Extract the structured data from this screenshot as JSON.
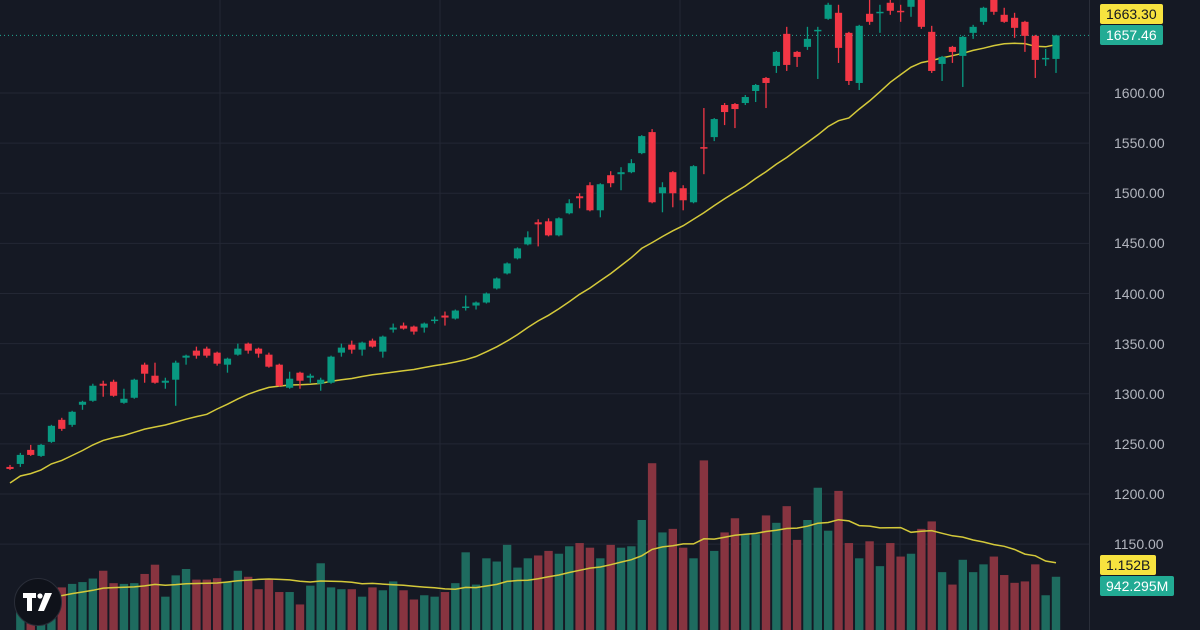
{
  "chart_data": {
    "type": "candlestick",
    "title": "",
    "price_axis": {
      "ticks": [
        1600,
        1550,
        1500,
        1450,
        1400,
        1350,
        1300,
        1250,
        1200,
        1150
      ],
      "tick_labels": [
        "1600.00",
        "1550.00",
        "1500.00",
        "1450.00",
        "1400.00",
        "1350.00",
        "1300.00",
        "1250.00",
        "1200.00",
        "1150.00"
      ]
    },
    "ma_label": "1663.30",
    "ma_value": 1663.3,
    "last_price_label": "1657.46",
    "last_price": 1657.46,
    "volume_ma_label": "1.152B",
    "volume_ma_value_m": 1152,
    "last_volume_label": "942.295M",
    "last_volume_m": 942.295,
    "ma_period": 20,
    "grid": true,
    "colors": {
      "up": "#089981",
      "down": "#f23645",
      "vol_up": "#1e6b5f",
      "vol_down": "#873440",
      "ma": "#d4c93a",
      "bg": "#151924",
      "grid": "#232734"
    },
    "candles_ohlc": [
      [
        1227,
        1229,
        1224,
        1225
      ],
      [
        1230,
        1241,
        1227,
        1239
      ],
      [
        1244,
        1249,
        1238,
        1239
      ],
      [
        1238,
        1250,
        1237,
        1249
      ],
      [
        1252,
        1269,
        1251,
        1268
      ],
      [
        1274,
        1276,
        1263,
        1265
      ],
      [
        1269,
        1283,
        1267,
        1282
      ],
      [
        1289,
        1293,
        1284,
        1292
      ],
      [
        1293,
        1310,
        1292,
        1308
      ],
      [
        1310,
        1313,
        1297,
        1308
      ],
      [
        1312,
        1314,
        1297,
        1298
      ],
      [
        1291,
        1305,
        1290,
        1295
      ],
      [
        1296,
        1315,
        1295,
        1314
      ],
      [
        1329,
        1331,
        1311,
        1320
      ],
      [
        1318,
        1331,
        1310,
        1311
      ],
      [
        1311,
        1316,
        1305,
        1313
      ],
      [
        1314,
        1333,
        1288,
        1331
      ],
      [
        1336,
        1339,
        1329,
        1338
      ],
      [
        1343,
        1347,
        1335,
        1338
      ],
      [
        1345,
        1347,
        1336,
        1338
      ],
      [
        1341,
        1342,
        1328,
        1330
      ],
      [
        1329,
        1336,
        1321,
        1335
      ],
      [
        1339,
        1350,
        1338,
        1345
      ],
      [
        1350,
        1351,
        1340,
        1343
      ],
      [
        1345,
        1346,
        1336,
        1340
      ],
      [
        1339,
        1341,
        1326,
        1327
      ],
      [
        1329,
        1330,
        1307,
        1308
      ],
      [
        1306,
        1322,
        1305,
        1315
      ],
      [
        1321,
        1322,
        1305,
        1313
      ],
      [
        1316,
        1320,
        1311,
        1318
      ],
      [
        1310,
        1316,
        1303,
        1314
      ],
      [
        1311,
        1338,
        1310,
        1337
      ],
      [
        1341,
        1350,
        1337,
        1346
      ],
      [
        1349,
        1353,
        1340,
        1344
      ],
      [
        1344,
        1352,
        1338,
        1351
      ],
      [
        1353,
        1355,
        1346,
        1347
      ],
      [
        1342,
        1358,
        1336,
        1357
      ],
      [
        1364,
        1370,
        1361,
        1366
      ],
      [
        1368,
        1371,
        1364,
        1365
      ],
      [
        1367,
        1368,
        1359,
        1362
      ],
      [
        1366,
        1371,
        1361,
        1370
      ],
      [
        1373,
        1377,
        1370,
        1374
      ],
      [
        1378,
        1382,
        1368,
        1376
      ],
      [
        1375,
        1384,
        1374,
        1383
      ],
      [
        1386,
        1398,
        1383,
        1387
      ],
      [
        1388,
        1392,
        1384,
        1391
      ],
      [
        1391,
        1401,
        1390,
        1400
      ],
      [
        1405,
        1416,
        1404,
        1415
      ],
      [
        1420,
        1431,
        1419,
        1430
      ],
      [
        1435,
        1446,
        1434,
        1445
      ],
      [
        1449,
        1462,
        1448,
        1456
      ],
      [
        1471,
        1474,
        1447,
        1469
      ],
      [
        1472,
        1475,
        1457,
        1458
      ],
      [
        1458,
        1476,
        1457,
        1475
      ],
      [
        1480,
        1494,
        1479,
        1490
      ],
      [
        1497,
        1500,
        1485,
        1495
      ],
      [
        1508,
        1511,
        1482,
        1483
      ],
      [
        1483,
        1510,
        1476,
        1509
      ],
      [
        1518,
        1522,
        1506,
        1510
      ],
      [
        1519,
        1526,
        1503,
        1521
      ],
      [
        1521,
        1534,
        1520,
        1530
      ],
      [
        1540,
        1558,
        1539,
        1557
      ],
      [
        1561,
        1564,
        1490,
        1491
      ],
      [
        1500,
        1511,
        1481,
        1506
      ],
      [
        1521,
        1522,
        1486,
        1500
      ],
      [
        1505,
        1508,
        1483,
        1493
      ],
      [
        1491,
        1528,
        1490,
        1527
      ],
      [
        1546,
        1585,
        1519,
        1545
      ],
      [
        1556,
        1575,
        1552,
        1574
      ],
      [
        1588,
        1590,
        1568,
        1581
      ],
      [
        1589,
        1590,
        1565,
        1584
      ],
      [
        1590,
        1598,
        1588,
        1596
      ],
      [
        1602,
        1609,
        1591,
        1608
      ],
      [
        1615,
        1616,
        1585,
        1610
      ],
      [
        1627,
        1642,
        1620,
        1641
      ],
      [
        1659,
        1666,
        1622,
        1628
      ],
      [
        1641,
        1642,
        1626,
        1636
      ],
      [
        1646,
        1666,
        1643,
        1654
      ],
      [
        1662,
        1666,
        1614,
        1663
      ],
      [
        1674,
        1690,
        1673,
        1688
      ],
      [
        1680,
        1688,
        1630,
        1645
      ],
      [
        1660,
        1661,
        1608,
        1612
      ],
      [
        1610,
        1668,
        1603,
        1667
      ],
      [
        1679,
        1693,
        1668,
        1671
      ],
      [
        1680,
        1688,
        1660,
        1681
      ],
      [
        1690,
        1695,
        1678,
        1682
      ],
      [
        1682,
        1688,
        1671,
        1681
      ],
      [
        1686,
        1695,
        1676,
        1693
      ],
      [
        1693,
        1700,
        1664,
        1666
      ],
      [
        1661,
        1667,
        1620,
        1622
      ],
      [
        1629,
        1637,
        1612,
        1636
      ],
      [
        1646,
        1647,
        1630,
        1641
      ],
      [
        1637,
        1657,
        1606,
        1656
      ],
      [
        1660,
        1668,
        1654,
        1666
      ],
      [
        1671,
        1686,
        1668,
        1685
      ],
      [
        1693,
        1698,
        1678,
        1681
      ],
      [
        1678,
        1685,
        1670,
        1671
      ],
      [
        1675,
        1680,
        1655,
        1665
      ],
      [
        1671,
        1672,
        1641,
        1657
      ],
      [
        1657,
        1658,
        1615,
        1633
      ],
      [
        1634,
        1644,
        1627,
        1635
      ],
      [
        1634,
        1658,
        1620,
        1657.46
      ]
    ],
    "volumes_m": [
      471,
      628,
      691,
      502,
      754,
      816,
      848,
      911,
      1049,
      829,
      816,
      829,
      992,
      1156,
      590,
      967,
      1080,
      892,
      892,
      917,
      848,
      1049,
      942,
      722,
      898,
      672,
      672,
      452,
      785,
      1181,
      754,
      722,
      722,
      590,
      754,
      703,
      860,
      703,
      540,
      615,
      590,
      672,
      829,
      1375,
      804,
      1269,
      1212,
      1507,
      1105,
      1269,
      1319,
      1400,
      1350,
      1482,
      1539,
      1457,
      1269,
      1507,
      1457,
      1482,
      1947,
      2952,
      1727,
      1790,
      1457,
      1269,
      3002,
      1400,
      1727,
      1978,
      1696,
      1696,
      2028,
      1897,
      2192,
      1595,
      1947,
      2518,
      1758,
      2462,
      1539,
      1269,
      1570,
      1130,
      1539,
      1300,
      1350,
      1790,
      1922,
      1024,
      804,
      1243,
      1024,
      1162,
      1300,
      973,
      835,
      860,
      1162,
      615,
      942.295
    ]
  }
}
